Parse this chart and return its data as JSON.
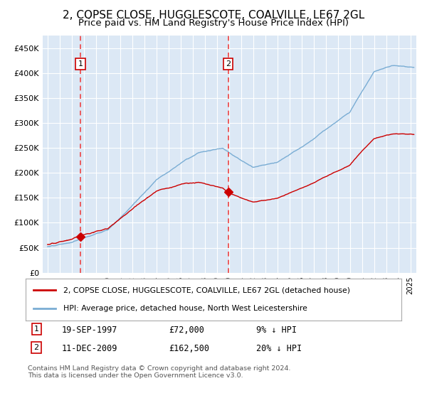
{
  "title": "2, COPSE CLOSE, HUGGLESCOTE, COALVILLE, LE67 2GL",
  "subtitle": "Price paid vs. HM Land Registry's House Price Index (HPI)",
  "title_fontsize": 11,
  "subtitle_fontsize": 9.5,
  "ylim": [
    0,
    475000
  ],
  "xlim_start": 1994.6,
  "xlim_end": 2025.5,
  "ytick_labels": [
    "£0",
    "£50K",
    "£100K",
    "£150K",
    "£200K",
    "£250K",
    "£300K",
    "£350K",
    "£400K",
    "£450K"
  ],
  "ytick_values": [
    0,
    50000,
    100000,
    150000,
    200000,
    250000,
    300000,
    350000,
    400000,
    450000
  ],
  "hpi_color": "#7aadd4",
  "price_color": "#cc0000",
  "vline_color": "#ee4444",
  "background_color": "#dce8f5",
  "sale1_date": 1997.72,
  "sale1_price": 72000,
  "sale2_date": 2009.94,
  "sale2_price": 162500,
  "legend_label1": "2, COPSE CLOSE, HUGGLESCOTE, COALVILLE, LE67 2GL (detached house)",
  "legend_label2": "HPI: Average price, detached house, North West Leicestershire",
  "annotation1_date": "19-SEP-1997",
  "annotation1_price": "£72,000",
  "annotation1_hpi": "9% ↓ HPI",
  "annotation2_date": "11-DEC-2009",
  "annotation2_price": "£162,500",
  "annotation2_hpi": "20% ↓ HPI",
  "footer": "Contains HM Land Registry data © Crown copyright and database right 2024.\nThis data is licensed under the Open Government Licence v3.0."
}
